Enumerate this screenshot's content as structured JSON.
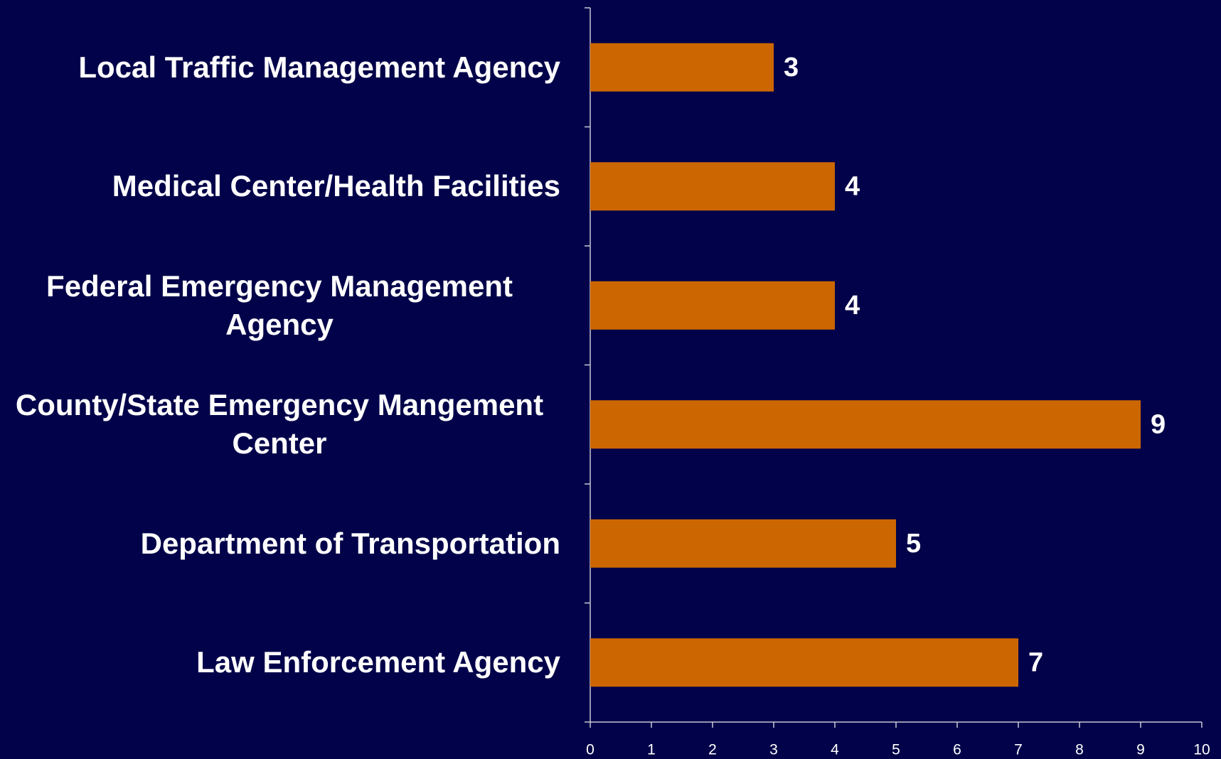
{
  "chart_data": {
    "type": "bar",
    "orientation": "horizontal",
    "categories": [
      "Local Traffic Management Agency",
      "Medical Center/Health Facilities",
      "Federal Emergency Management Agency",
      "County/State Emergency Mangement Center",
      "Department of Transportation",
      "Law Enforcement Agency"
    ],
    "values": [
      3,
      4,
      4,
      9,
      5,
      7
    ],
    "color": "#cc6600",
    "xlim": [
      0,
      10
    ],
    "xticks": [
      0,
      1,
      2,
      3,
      4,
      5,
      6,
      7,
      8,
      9,
      10
    ]
  }
}
